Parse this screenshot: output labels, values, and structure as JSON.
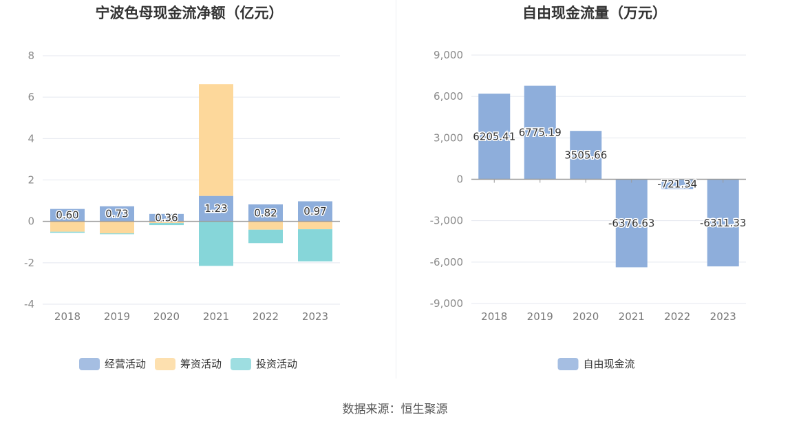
{
  "source_text": "数据来源：恒生聚源",
  "chart_data": [
    {
      "type": "bar",
      "stacked": true,
      "title": "宁波色母现金流净额（亿元）",
      "categories": [
        "2018",
        "2019",
        "2020",
        "2021",
        "2022",
        "2023"
      ],
      "ylim": [
        -4,
        8
      ],
      "yticks": [
        8,
        6,
        4,
        2,
        0,
        -2,
        -4
      ],
      "grid": true,
      "legend_position": "bottom",
      "series": [
        {
          "name": "经营活动",
          "color": "#8eaedb",
          "values": [
            0.6,
            0.73,
            0.36,
            1.23,
            0.82,
            0.97
          ],
          "labels": [
            "0.60",
            "0.73",
            "0.36",
            "1.23",
            "0.82",
            "0.97"
          ]
        },
        {
          "name": "筹资活动",
          "color": "#fdd89b",
          "values": [
            -0.5,
            -0.58,
            -0.08,
            5.4,
            -0.4,
            -0.38
          ]
        },
        {
          "name": "投资活动",
          "color": "#86d6d9",
          "values": [
            -0.05,
            -0.04,
            -0.1,
            -2.15,
            -0.65,
            -1.55
          ]
        }
      ]
    },
    {
      "type": "bar",
      "title": "自由现金流量（万元）",
      "categories": [
        "2018",
        "2019",
        "2020",
        "2021",
        "2022",
        "2023"
      ],
      "ylim": [
        -9000,
        9000
      ],
      "yticks": [
        "9,000",
        "6,000",
        "3,000",
        "0",
        "-3,000",
        "-6,000",
        "-9,000"
      ],
      "ytick_values": [
        9000,
        6000,
        3000,
        0,
        -3000,
        -6000,
        -9000
      ],
      "grid": true,
      "legend_position": "bottom",
      "series": [
        {
          "name": "自由现金流",
          "color": "#8eaedb",
          "values": [
            6205.41,
            6775.19,
            3505.66,
            -6376.63,
            -721.34,
            -6311.33
          ],
          "labels": [
            "6205.41",
            "6775.19",
            "3505.66",
            "-6376.63",
            "-721.34",
            "-6311.33"
          ]
        }
      ]
    }
  ]
}
